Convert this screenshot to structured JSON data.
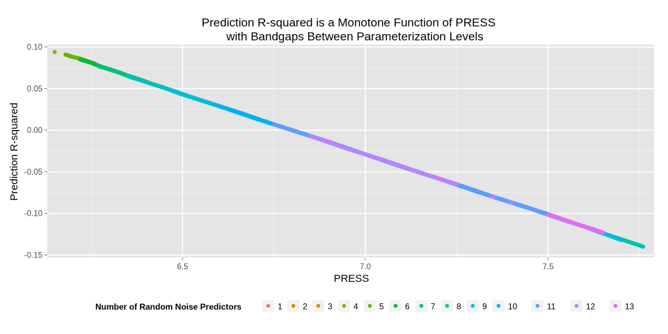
{
  "chart_data": {
    "type": "scatter",
    "title": [
      "Prediction R-squared is a Monotone Function of PRESS",
      "with Bandgaps Between Parameterization Levels"
    ],
    "xlabel": "PRESS",
    "ylabel": "Prediction R-squared",
    "xlim": [
      6.13,
      7.79
    ],
    "ylim": [
      -0.153,
      0.103
    ],
    "x_ticks": [
      6.5,
      7.0,
      7.5
    ],
    "x_tick_labels": [
      "6.5",
      "7.0",
      "7.5"
    ],
    "y_ticks": [
      0.1,
      0.05,
      0.0,
      -0.05,
      -0.1,
      -0.15
    ],
    "y_tick_labels": [
      "0.10",
      "0.05",
      "0.00",
      "-0.05",
      "-0.10",
      "-0.15"
    ],
    "grid": true,
    "legend": {
      "title": "Number of Random Noise Predictors",
      "position": "bottom",
      "entries": [
        {
          "label": "1",
          "color": "#F8766D"
        },
        {
          "label": "2",
          "color": "#E58700"
        },
        {
          "label": "3",
          "color": "#C99800"
        },
        {
          "label": "4",
          "color": "#A3A500"
        },
        {
          "label": "5",
          "color": "#6BB100"
        },
        {
          "label": "6",
          "color": "#00BA38"
        },
        {
          "label": "7",
          "color": "#00BF7D"
        },
        {
          "label": "8",
          "color": "#00C0AF"
        },
        {
          "label": "9",
          "color": "#00BCD8"
        },
        {
          "label": "10",
          "color": "#00B0F6"
        },
        {
          "label": "11",
          "color": "#619CFF"
        },
        {
          "label": "12",
          "color": "#B983FF"
        },
        {
          "label": "13",
          "color": "#E76BF3"
        }
      ]
    },
    "relationship": {
      "slope": -0.145,
      "intercept": 0.986
    },
    "series": [
      {
        "name": "4",
        "x": [
          6.15
        ],
        "y": [
          0.094
        ]
      },
      {
        "name": "5",
        "x": [
          6.18,
          6.2,
          6.22,
          6.24,
          6.26
        ],
        "y": [
          0.091,
          0.088,
          0.086,
          0.083,
          0.08
        ]
      },
      {
        "name": "6",
        "x": [
          6.22,
          6.25,
          6.28,
          6.31,
          6.34,
          6.37
        ],
        "y": [
          0.085,
          0.081,
          0.076,
          0.072,
          0.067,
          0.063
        ]
      },
      {
        "name": "7",
        "x": [
          6.27,
          6.3,
          6.33,
          6.36,
          6.39,
          6.42,
          6.45
        ],
        "y": [
          0.077,
          0.073,
          0.069,
          0.064,
          0.06,
          0.055,
          0.051
        ]
      },
      {
        "name": "8",
        "x": [
          6.35,
          6.4,
          6.45,
          6.5,
          6.55,
          6.6,
          6.65,
          7.62,
          7.65,
          7.72,
          7.74,
          7.76
        ],
        "y": [
          0.065,
          0.058,
          0.051,
          0.043,
          0.036,
          0.029,
          0.022,
          -0.119,
          -0.124,
          -0.134,
          -0.137,
          -0.14
        ]
      },
      {
        "name": "9",
        "x": [
          6.45,
          6.55,
          6.65,
          6.75,
          6.85,
          7.25,
          7.35,
          7.45,
          7.55,
          7.6,
          7.7
        ],
        "y": [
          0.051,
          0.036,
          0.022,
          0.007,
          -0.007,
          -0.065,
          -0.08,
          -0.094,
          -0.109,
          -0.116,
          -0.132
        ]
      },
      {
        "name": "10",
        "x": [
          6.6,
          6.7,
          6.8,
          6.9,
          7.0,
          7.1,
          7.2,
          7.3,
          7.4,
          7.5
        ],
        "y": [
          0.029,
          0.014,
          0.0,
          -0.014,
          -0.029,
          -0.044,
          -0.058,
          -0.073,
          -0.087,
          -0.101
        ]
      },
      {
        "name": "11",
        "x": [
          6.75,
          6.85,
          6.95,
          7.05,
          7.15,
          7.25,
          7.35,
          7.45,
          7.55
        ],
        "y": [
          0.007,
          -0.007,
          -0.022,
          -0.036,
          -0.051,
          -0.065,
          -0.08,
          -0.094,
          -0.109
        ]
      },
      {
        "name": "12",
        "x": [
          6.85,
          6.95,
          7.05,
          7.15,
          7.25,
          7.4,
          7.58,
          7.63
        ],
        "y": [
          -0.007,
          -0.022,
          -0.036,
          -0.051,
          -0.065,
          -0.087,
          -0.113,
          -0.12
        ]
      },
      {
        "name": "13",
        "x": [
          6.9,
          7.05,
          7.2,
          7.35,
          7.5,
          7.6,
          7.65
        ],
        "y": [
          -0.014,
          -0.036,
          -0.058,
          -0.08,
          -0.101,
          -0.116,
          -0.123
        ]
      }
    ]
  }
}
